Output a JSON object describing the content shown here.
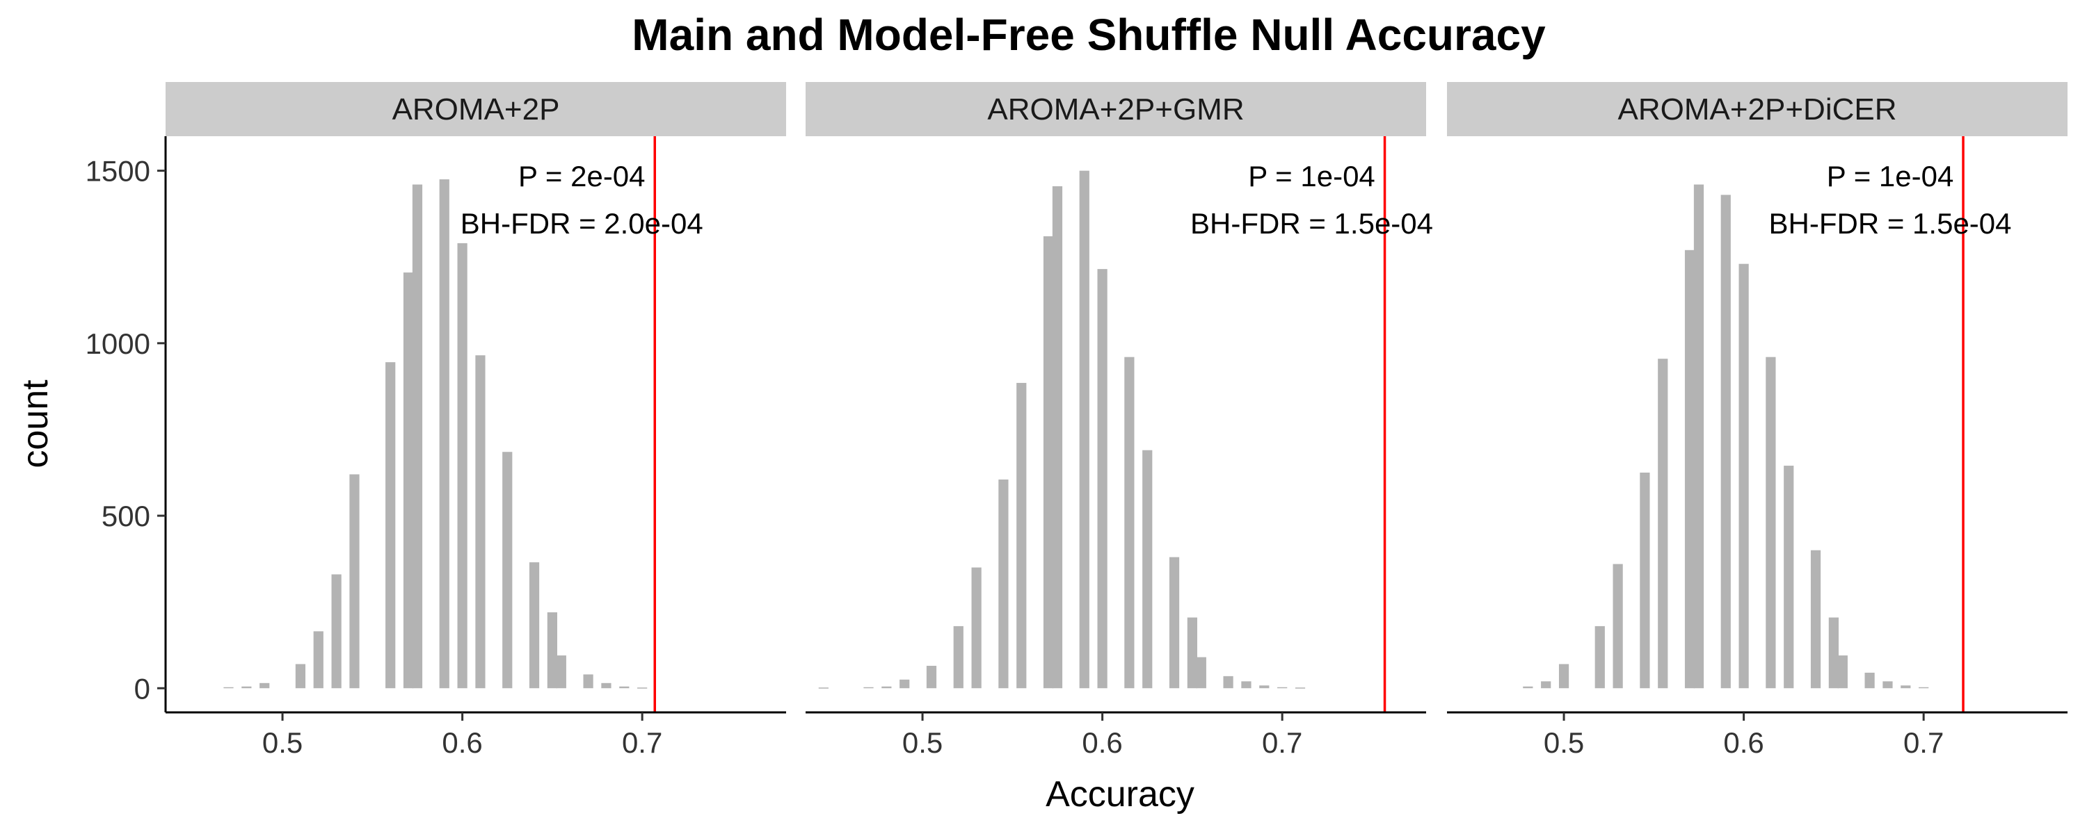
{
  "chart_data": {
    "type": "bar",
    "title": "Main and Model-Free Shuffle Null Accuracy",
    "xlabel": "Accuracy",
    "ylabel": "count",
    "xlim": [
      0.435,
      0.78
    ],
    "ylim": [
      -70,
      1600
    ],
    "x_ticks": [
      0.5,
      0.6,
      0.7
    ],
    "x_tick_labels": [
      "0.5",
      "0.6",
      "0.7"
    ],
    "y_ticks": [
      0,
      500,
      1000,
      1500
    ],
    "y_tick_labels": [
      "0",
      "500",
      "1000",
      "1500"
    ],
    "bin_width": 0.01,
    "bar_color": "#b3b3b3",
    "observed_line_color": "#ff0000",
    "strip_color": "#cccccc",
    "grid": false,
    "panels": [
      {
        "label": "AROMA+2P",
        "observed_accuracy": 0.707,
        "annotations": [
          "P = 2e-04",
          "BH-FDR = 2.0e-04"
        ],
        "bins": [
          {
            "x": 0.47,
            "count": 3
          },
          {
            "x": 0.48,
            "count": 5
          },
          {
            "x": 0.49,
            "count": 15
          },
          {
            "x": 0.51,
            "count": 70
          },
          {
            "x": 0.52,
            "count": 165
          },
          {
            "x": 0.53,
            "count": 330
          },
          {
            "x": 0.54,
            "count": 620
          },
          {
            "x": 0.56,
            "count": 945
          },
          {
            "x": 0.57,
            "count": 1205
          },
          {
            "x": 0.575,
            "count": 1460
          },
          {
            "x": 0.59,
            "count": 1475
          },
          {
            "x": 0.6,
            "count": 1290
          },
          {
            "x": 0.61,
            "count": 965
          },
          {
            "x": 0.625,
            "count": 685
          },
          {
            "x": 0.64,
            "count": 365
          },
          {
            "x": 0.65,
            "count": 220
          },
          {
            "x": 0.655,
            "count": 95
          },
          {
            "x": 0.67,
            "count": 40
          },
          {
            "x": 0.68,
            "count": 15
          },
          {
            "x": 0.69,
            "count": 5
          },
          {
            "x": 0.7,
            "count": 2
          }
        ]
      },
      {
        "label": "AROMA+2P+GMR",
        "observed_accuracy": 0.757,
        "annotations": [
          "P = 1e-04",
          "BH-FDR = 1.5e-04"
        ],
        "bins": [
          {
            "x": 0.445,
            "count": 2
          },
          {
            "x": 0.47,
            "count": 3
          },
          {
            "x": 0.48,
            "count": 5
          },
          {
            "x": 0.49,
            "count": 25
          },
          {
            "x": 0.505,
            "count": 65
          },
          {
            "x": 0.52,
            "count": 180
          },
          {
            "x": 0.53,
            "count": 350
          },
          {
            "x": 0.545,
            "count": 605
          },
          {
            "x": 0.555,
            "count": 885
          },
          {
            "x": 0.57,
            "count": 1310
          },
          {
            "x": 0.575,
            "count": 1455
          },
          {
            "x": 0.59,
            "count": 1500
          },
          {
            "x": 0.6,
            "count": 1215
          },
          {
            "x": 0.615,
            "count": 960
          },
          {
            "x": 0.625,
            "count": 690
          },
          {
            "x": 0.64,
            "count": 380
          },
          {
            "x": 0.65,
            "count": 205
          },
          {
            "x": 0.655,
            "count": 90
          },
          {
            "x": 0.67,
            "count": 35
          },
          {
            "x": 0.68,
            "count": 20
          },
          {
            "x": 0.69,
            "count": 8
          },
          {
            "x": 0.7,
            "count": 3
          },
          {
            "x": 0.71,
            "count": 2
          }
        ]
      },
      {
        "label": "AROMA+2P+DiCER",
        "observed_accuracy": 0.722,
        "annotations": [
          "P = 1e-04",
          "BH-FDR = 1.5e-04"
        ],
        "bins": [
          {
            "x": 0.48,
            "count": 5
          },
          {
            "x": 0.49,
            "count": 20
          },
          {
            "x": 0.5,
            "count": 70
          },
          {
            "x": 0.52,
            "count": 180
          },
          {
            "x": 0.53,
            "count": 360
          },
          {
            "x": 0.545,
            "count": 625
          },
          {
            "x": 0.555,
            "count": 955
          },
          {
            "x": 0.57,
            "count": 1270
          },
          {
            "x": 0.575,
            "count": 1460
          },
          {
            "x": 0.59,
            "count": 1430
          },
          {
            "x": 0.6,
            "count": 1230
          },
          {
            "x": 0.615,
            "count": 960
          },
          {
            "x": 0.625,
            "count": 645
          },
          {
            "x": 0.64,
            "count": 400
          },
          {
            "x": 0.65,
            "count": 205
          },
          {
            "x": 0.655,
            "count": 95
          },
          {
            "x": 0.67,
            "count": 45
          },
          {
            "x": 0.68,
            "count": 20
          },
          {
            "x": 0.69,
            "count": 8
          },
          {
            "x": 0.7,
            "count": 3
          }
        ]
      }
    ]
  }
}
